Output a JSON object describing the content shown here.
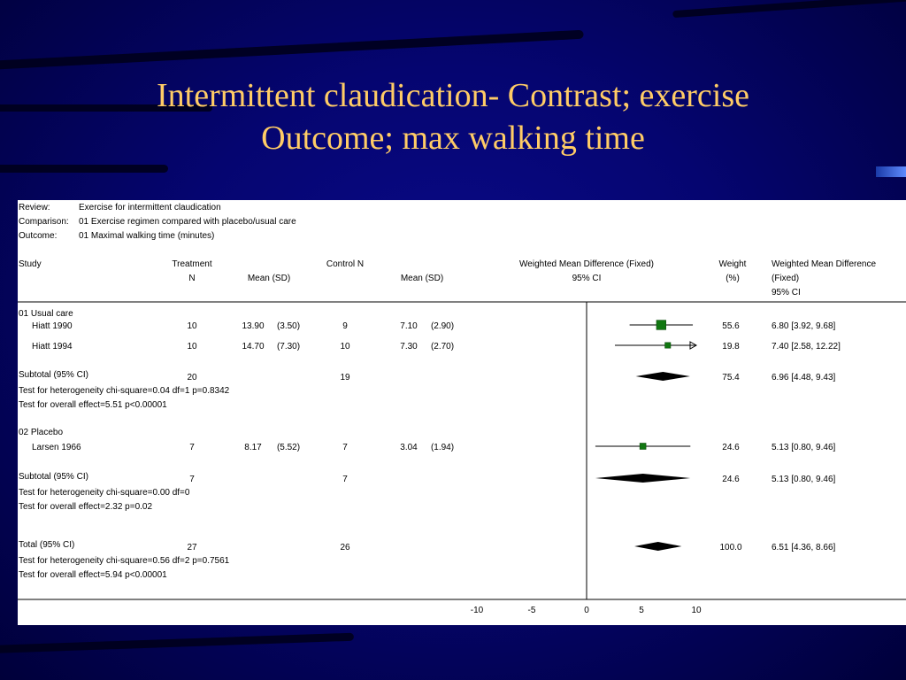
{
  "slide": {
    "title_line1": "Intermittent claudication- Contrast; exercise",
    "title_line2": "Outcome; max walking time"
  },
  "colors": {
    "background": "#050570",
    "title": "#ffcc66",
    "box": "#117711"
  },
  "chart_data": {
    "type": "forest",
    "meta": [
      {
        "label": "Review:",
        "value": "Exercise for intermittent claudication"
      },
      {
        "label": "Comparison:",
        "value": "01 Exercise regimen compared with placebo/usual care"
      },
      {
        "label": "Outcome:",
        "value": "01 Maximal walking time (minutes)"
      }
    ],
    "headers": {
      "study": "Study",
      "treatment": "Treatment",
      "treatment_n": "N",
      "treatment_mean": "Mean (SD)",
      "control_n": "Control N",
      "control_mean": "Mean (SD)",
      "wmd": "Weighted Mean Difference (Fixed)",
      "wmd_ci": "95% CI",
      "weight": "Weight",
      "weight_unit": "(%)",
      "wmd2_line1": "Weighted Mean Difference",
      "wmd2_line2": "(Fixed)",
      "wmd2_line3": "95% CI"
    },
    "rows": [
      {
        "kind": "group",
        "label": "01 Usual care"
      },
      {
        "kind": "study",
        "label": "Hiatt 1990",
        "tn": "10",
        "tmean": "13.90",
        "tsd": "(3.50)",
        "cn": "9",
        "cmean": "7.10",
        "csd": "(2.90)",
        "est": 6.8,
        "lo": 3.92,
        "hi": 9.68,
        "weight": "55.6",
        "ci_text": "6.80 [3.92, 9.68]"
      },
      {
        "kind": "study",
        "label": "Hiatt 1994",
        "tn": "10",
        "tmean": "14.70",
        "tsd": "(7.30)",
        "cn": "10",
        "cmean": "7.30",
        "csd": "(2.70)",
        "est": 7.4,
        "lo": 2.58,
        "hi": 12.22,
        "weight": "19.8",
        "ci_text": "7.40 [2.58, 12.22]"
      },
      {
        "kind": "subtotal",
        "label": "Subtotal (95% CI)",
        "tn": "20",
        "cn": "19",
        "est": 6.96,
        "lo": 4.48,
        "hi": 9.43,
        "weight": "75.4",
        "ci_text": "6.96 [4.48, 9.43]"
      },
      {
        "kind": "note",
        "label": "Test for heterogeneity chi-square=0.04 df=1 p=0.8342"
      },
      {
        "kind": "note",
        "label": "Test for overall effect=5.51 p<0.00001"
      },
      {
        "kind": "group",
        "label": "02 Placebo"
      },
      {
        "kind": "study",
        "label": "Larsen 1966",
        "tn": "7",
        "tmean": "8.17",
        "tsd": "(5.52)",
        "cn": "7",
        "cmean": "3.04",
        "csd": "(1.94)",
        "est": 5.13,
        "lo": 0.8,
        "hi": 9.46,
        "weight": "24.6",
        "ci_text": "5.13 [0.80, 9.46]"
      },
      {
        "kind": "subtotal",
        "label": "Subtotal (95% CI)",
        "tn": "7",
        "cn": "7",
        "est": 5.13,
        "lo": 0.8,
        "hi": 9.46,
        "weight": "24.6",
        "ci_text": "5.13 [0.80, 9.46]"
      },
      {
        "kind": "note",
        "label": "Test for heterogeneity chi-square=0.00 df=0"
      },
      {
        "kind": "note",
        "label": "Test for overall effect=2.32 p=0.02"
      },
      {
        "kind": "subtotal",
        "label": "Total (95% CI)",
        "tn": "27",
        "cn": "26",
        "est": 6.51,
        "lo": 4.36,
        "hi": 8.66,
        "weight": "100.0",
        "ci_text": "6.51 [4.36, 8.66]"
      },
      {
        "kind": "note",
        "label": "Test for heterogeneity chi-square=0.56 df=2 p=0.7561"
      },
      {
        "kind": "note",
        "label": "Test for overall effect=5.94 p<0.00001"
      }
    ],
    "xlim": [
      -10,
      10
    ],
    "xticks": [
      -10,
      -5,
      0,
      5,
      10
    ],
    "null_line": 0
  }
}
